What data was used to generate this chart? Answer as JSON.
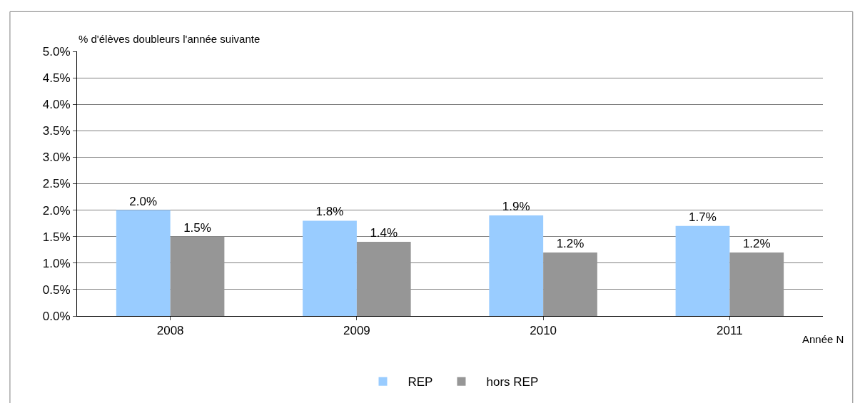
{
  "chart_data": {
    "type": "bar",
    "ylabel": "% d'élèves doubleurs l'année suivante",
    "xlabel": "Année N",
    "categories": [
      "2008",
      "2009",
      "2010",
      "2011"
    ],
    "series": [
      {
        "name": "REP",
        "color": "#99ccff",
        "values": [
          2.0,
          1.8,
          1.9,
          1.7
        ],
        "value_labels": [
          "2.0%",
          "1.8%",
          "1.9%",
          "1.7%"
        ]
      },
      {
        "name": "hors REP",
        "color": "#969696",
        "values": [
          1.5,
          1.4,
          1.2,
          1.2
        ],
        "value_labels": [
          "1.5%",
          "1.4%",
          "1.2%",
          "1.2%"
        ]
      }
    ],
    "ylim": [
      0,
      5
    ],
    "yticks": [
      {
        "value": 0,
        "label": "0.0%"
      },
      {
        "value": 0.5,
        "label": "0.5%"
      },
      {
        "value": 1,
        "label": "1.0%"
      },
      {
        "value": 1.5,
        "label": "1.5%"
      },
      {
        "value": 2,
        "label": "2.0%"
      },
      {
        "value": 2.5,
        "label": "2.5%"
      },
      {
        "value": 3,
        "label": "3.0%"
      },
      {
        "value": 3.5,
        "label": "3.5%"
      },
      {
        "value": 4,
        "label": "4.0%"
      },
      {
        "value": 4.5,
        "label": "4.5%"
      },
      {
        "value": 5,
        "label": "5.0%"
      }
    ],
    "grid": "y",
    "legend": "bottom"
  }
}
